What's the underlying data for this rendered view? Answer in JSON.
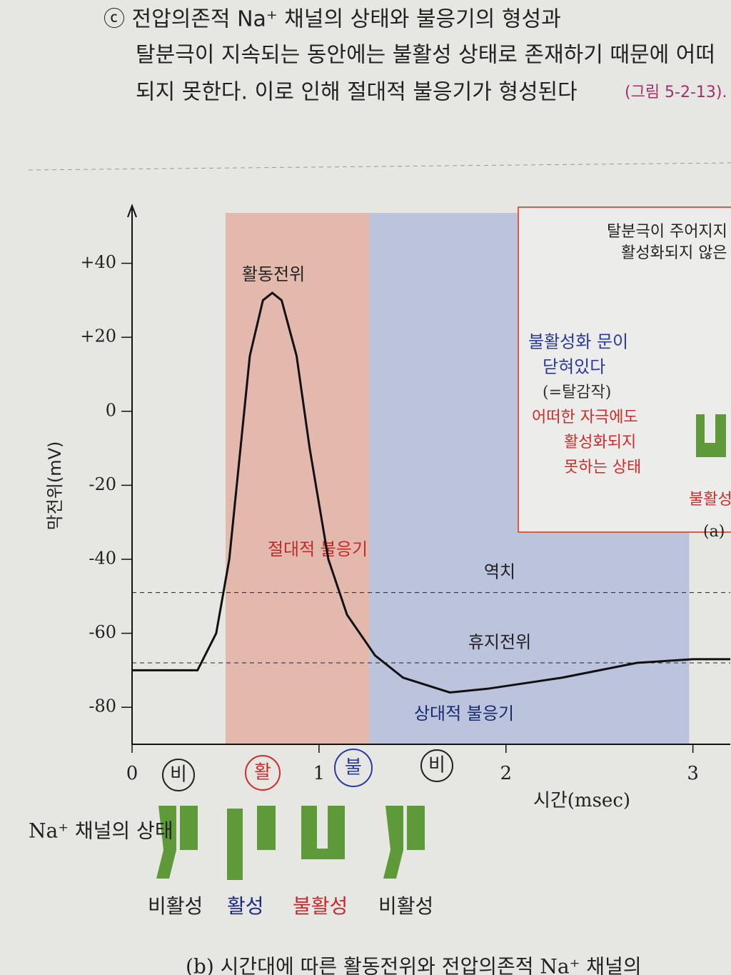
{
  "text": {
    "lines": [
      "ⓒ 전압의존적 Na⁺ 채널의 상태와 불응기의 형성과",
      "탈분극이 지속되는 동안에는 불활성 상태로 존재하기 때문에 어떠",
      "되지 못한다. 이로 인해 절대적 불응기가 형성된다",
      "(그림 5-2-13)."
    ]
  },
  "chart_data": {
    "type": "line",
    "x_label": "시간(msec)",
    "y_label": "막전위(mV)",
    "peak_label": "활동전위",
    "color": "#111111",
    "x": [
      0,
      0.35,
      0.45,
      0.52,
      0.58,
      0.63,
      0.7,
      0.75,
      0.8,
      0.88,
      0.95,
      1.05,
      1.15,
      1.3,
      1.45,
      1.7,
      1.9,
      2.3,
      2.7,
      3.0,
      3.2
    ],
    "values": [
      -70,
      -70,
      -60,
      -40,
      -10,
      15,
      30,
      32,
      30,
      15,
      -10,
      -40,
      -55,
      -66,
      -72,
      -76,
      -75,
      -72,
      -68,
      -67,
      -67
    ],
    "xlim": [
      0,
      3.2
    ],
    "xticks": [
      0,
      1,
      2,
      3
    ],
    "ylim": [
      -90,
      60
    ],
    "yticks": [
      -80,
      -60,
      -40,
      -20,
      0,
      {
        "value": 20,
        "label": "+20"
      },
      {
        "value": 40,
        "label": "+40"
      }
    ],
    "reference_lines": [
      {
        "label": "역치",
        "value": -49
      },
      {
        "label": "휴지전위",
        "value": -68
      }
    ],
    "regions": [
      {
        "label": "절대적 불응기",
        "x": [
          0.5,
          1.27
        ],
        "color": "#e4b9ad"
      },
      {
        "label": "상대적 불응기",
        "x": [
          1.27,
          2.98
        ],
        "color": "#bcc3dc"
      }
    ]
  },
  "channels": {
    "label": "Na⁺ 채널의 상태",
    "states": [
      "비활성",
      "활성",
      "불활성",
      "비활성"
    ],
    "marks": [
      "비",
      "활",
      "불",
      "비"
    ]
  },
  "inset": {
    "lines": [
      "탈분극이 주어지지",
      "활성화되지 않은"
    ],
    "notes": [
      "불활성화 문이",
      "닫혀있다",
      "(=탈감작)",
      "어떠한 자극에도",
      "활성화되지",
      "못하는 상태"
    ],
    "state": "불활성",
    "label": "(a)"
  },
  "caption": "(b) 시간대에 따른 활동전위와 전압의존적 Na⁺ 채널의"
}
